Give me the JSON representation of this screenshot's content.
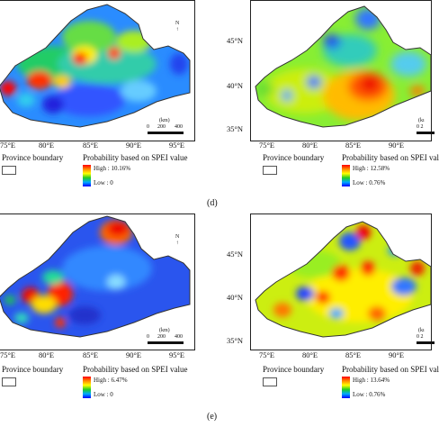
{
  "panels": [
    {
      "id": "top-left",
      "xticks": [
        "75°E",
        "80°E",
        "85°E",
        "90°E",
        "95°E"
      ],
      "yticks": [],
      "province_label": "Province boundary",
      "prob_title": "Probability based on SPEI value",
      "high": "High : 10.16%",
      "low": "Low : 0",
      "scale": [
        "(km)",
        "0",
        "200",
        "400"
      ],
      "north": "N"
    },
    {
      "id": "top-right",
      "xticks": [
        "75°E",
        "80°E",
        "85°E",
        "90°E"
      ],
      "yticks": [
        "45°N",
        "40°N",
        "35°N"
      ],
      "province_label": "Province boundary",
      "prob_title": "Probability based on SPEI val",
      "high": "High : 12.58%",
      "low": "Low : 0.76%",
      "scale": [
        "(kı",
        "0 2"
      ],
      "north": ""
    },
    {
      "id": "bottom-left",
      "xticks": [
        "75°E",
        "80°E",
        "85°E",
        "90°E",
        "95°E"
      ],
      "yticks": [],
      "province_label": "Province boundary",
      "prob_title": "Probability based on SPEI value",
      "high": "High : 6.47%",
      "low": "Low : 0",
      "scale": [
        "(km)",
        "0",
        "200",
        "400"
      ],
      "north": "N"
    },
    {
      "id": "bottom-right",
      "xticks": [
        "75°E",
        "80°E",
        "85°E",
        "90°E"
      ],
      "yticks": [
        "45°N",
        "40°N",
        "35°N"
      ],
      "province_label": "Province boundary",
      "prob_title": "Probability based on SPEI val",
      "high": "High : 13.64%",
      "low": "Low : 0.76%",
      "scale": [
        "(kı",
        "0 2"
      ],
      "north": ""
    }
  ],
  "labels": {
    "d": "(d)",
    "e": "(e)"
  },
  "colors": {
    "high": "#ff0000",
    "orange": "#ff8800",
    "yellow": "#ffff00",
    "green": "#22cc22",
    "cyan": "#00aaff",
    "low": "#0000ff"
  }
}
